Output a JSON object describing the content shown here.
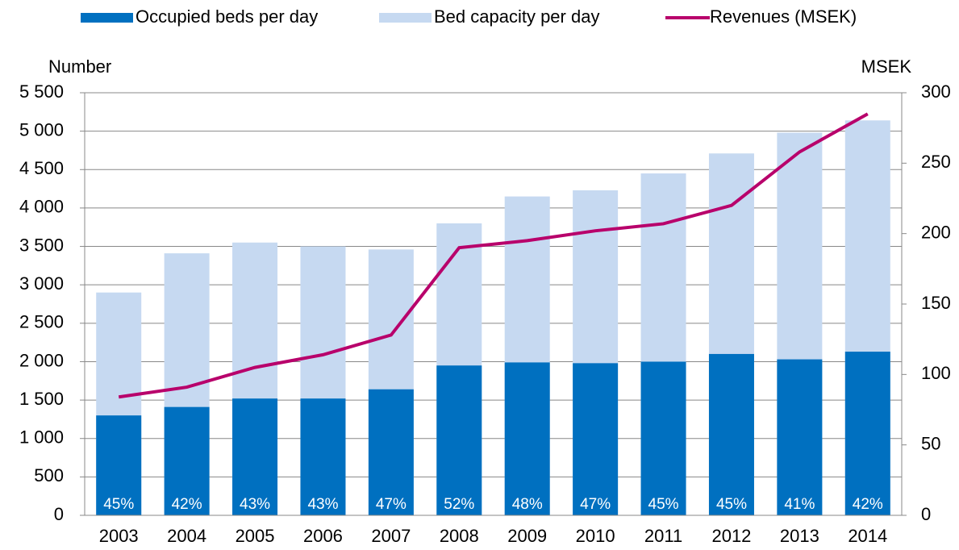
{
  "chart_data": {
    "type": "bar_line",
    "categories": [
      "2003",
      "2004",
      "2005",
      "2006",
      "2007",
      "2008",
      "2009",
      "2010",
      "2011",
      "2012",
      "2013",
      "2014"
    ],
    "series": [
      {
        "name": "Occupied beds per day",
        "color": "#0070c0",
        "values": [
          1300,
          1410,
          1520,
          1520,
          1640,
          1950,
          1990,
          1980,
          2000,
          2100,
          2030,
          2130
        ]
      },
      {
        "name": "Bed capacity per day",
        "color": "#c6d9f1",
        "values": [
          2900,
          3410,
          3550,
          3500,
          3460,
          3800,
          4150,
          4230,
          4450,
          4710,
          4980,
          5140
        ]
      },
      {
        "name": "Revenues (MSEK)",
        "color": "#b8006b",
        "axis": "y2",
        "values": [
          84,
          91,
          105,
          114,
          128,
          190,
          195,
          202,
          207,
          220,
          258,
          285
        ]
      }
    ],
    "occupancy_labels": [
      "45%",
      "42%",
      "43%",
      "43%",
      "47%",
      "52%",
      "48%",
      "47%",
      "45%",
      "45%",
      "41%",
      "42%"
    ],
    "ylabel": "Number",
    "y2label": "MSEK",
    "ylim": [
      0,
      5500
    ],
    "yticks": [
      0,
      500,
      {
        "value": 1000,
        "label": "1 000"
      },
      {
        "value": 1500,
        "label": "1 500"
      },
      {
        "value": 2000,
        "label": "2 000"
      },
      {
        "value": 2500,
        "label": "2 500"
      },
      {
        "value": 3000,
        "label": "3 000"
      },
      {
        "value": 3500,
        "label": "3 500"
      },
      {
        "value": 4000,
        "label": "4 000"
      },
      {
        "value": 4500,
        "label": "4 500"
      },
      {
        "value": 5000,
        "label": "5 000"
      },
      {
        "value": 5500,
        "label": "5 500"
      }
    ],
    "y2lim": [
      0,
      300
    ],
    "y2ticks": [
      0,
      50,
      100,
      150,
      200,
      250,
      300
    ],
    "grid": true
  }
}
